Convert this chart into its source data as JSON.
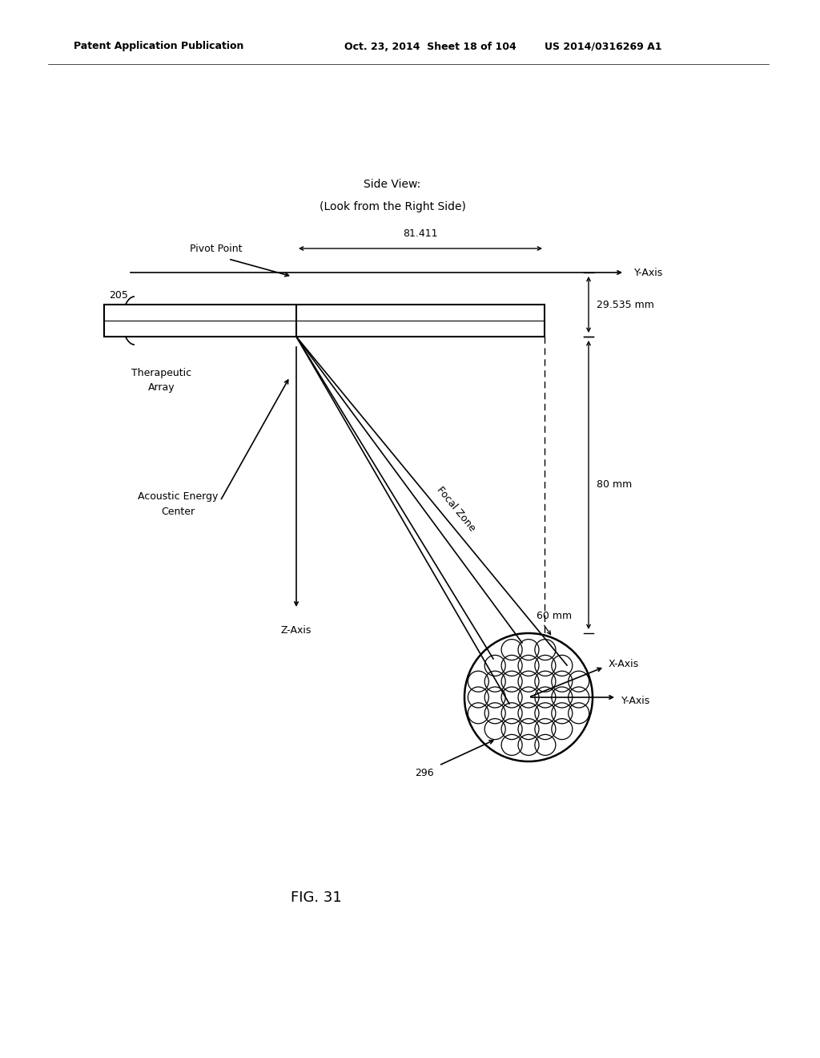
{
  "patent_header_left": "Patent Application Publication",
  "patent_header_mid": "Oct. 23, 2014  Sheet 18 of 104",
  "patent_header_right": "US 2014/0316269 A1",
  "title_line1": "Side View:",
  "title_line2": "(Look from the Right Side)",
  "fig_label": "FIG. 31",
  "bg_color": "#ffffff",
  "text_color": "#000000",
  "pivot_label": "Pivot Point",
  "label_205": "205",
  "label_therapeutic": "Therapeutic\nArray",
  "label_acoustic": "Acoustic Energy\nCenter",
  "label_z": "Z-Axis",
  "label_y_axis_top": "Y-Axis",
  "label_x_axis": "X-Axis",
  "label_y_axis_circ": "Y-Axis",
  "label_focal": "Focal Zone",
  "label_60mm": "60 mm",
  "label_80mm": "80 mm",
  "label_29535": "29.535 mm",
  "label_81411": "81.411",
  "label_296": "296",
  "font_size_patent": 9,
  "font_size_title": 10,
  "font_size_labels": 9,
  "font_size_fig": 13
}
